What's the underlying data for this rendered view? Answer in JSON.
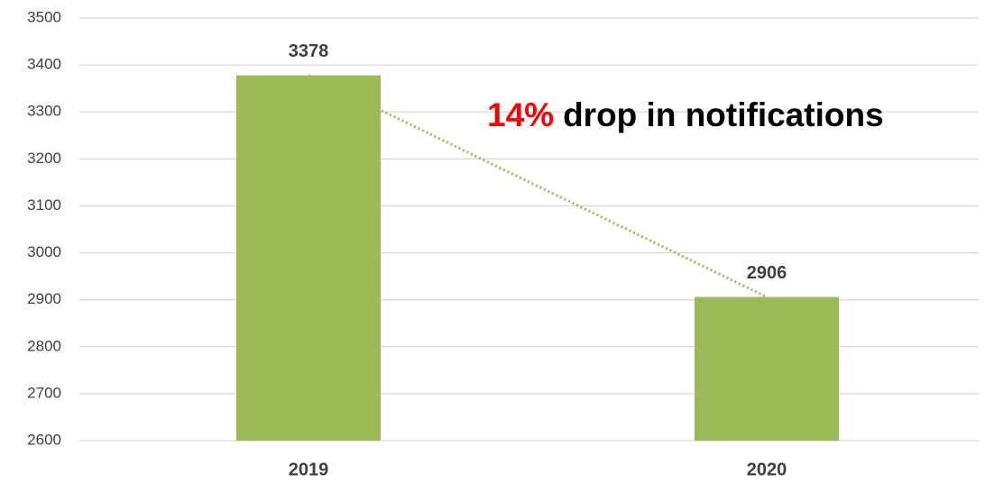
{
  "chart_data": {
    "type": "bar",
    "categories": [
      "2019",
      "2020"
    ],
    "values": [
      3378,
      2906
    ],
    "color": "#9bbb59",
    "ylim": [
      2600,
      3500
    ],
    "yticks": [
      2600,
      2700,
      2800,
      2900,
      3000,
      3100,
      3200,
      3300,
      3400,
      3500
    ],
    "grid": true,
    "data_labels": true,
    "trendline": {
      "style": "dotted",
      "color": "#9bbb59"
    },
    "annotation": {
      "highlight": "14%",
      "highlight_color": "#ff0000",
      "text": "drop in notifications"
    }
  }
}
